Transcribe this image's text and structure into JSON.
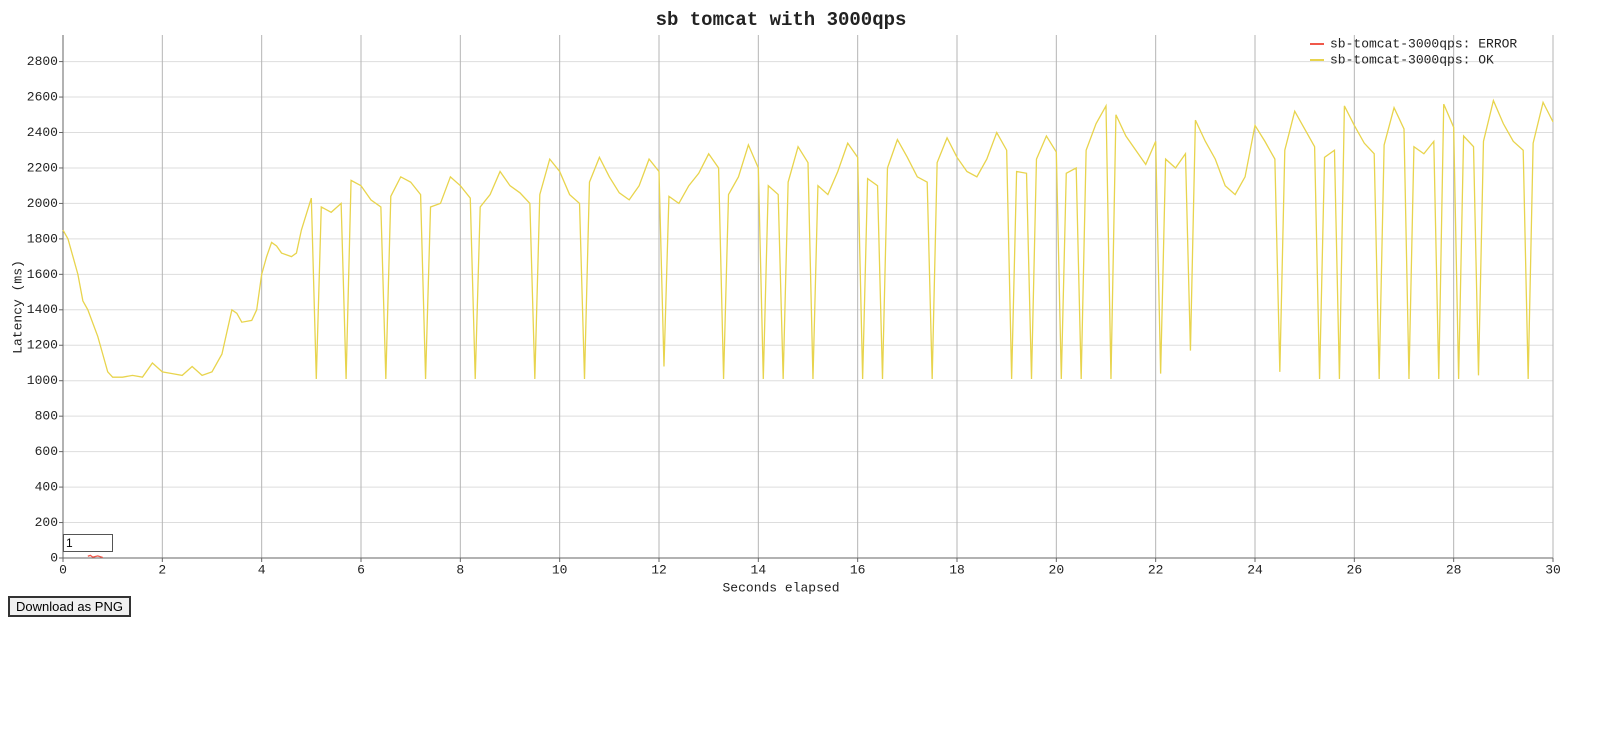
{
  "chart_data": {
    "type": "line",
    "title": "sb tomcat with 3000qps",
    "x_label": "Seconds elapsed",
    "y_label": "Latency (ms)",
    "xlim": [
      0,
      30
    ],
    "xticks": [
      0,
      2,
      4,
      6,
      8,
      10,
      12,
      14,
      16,
      18,
      20,
      22,
      24,
      26,
      28,
      30
    ],
    "ylim": [
      0,
      2950
    ],
    "yticks": [
      0,
      200,
      400,
      600,
      800,
      1000,
      1200,
      1400,
      1600,
      1800,
      2000,
      2200,
      2400,
      2600,
      2800
    ],
    "grid": true,
    "legend": "top-right",
    "series": [
      {
        "name": "sb-tomcat-3000qps: ERROR",
        "color": "#f0584a",
        "x": [
          0.5,
          0.55,
          0.6,
          0.7,
          0.8
        ],
        "values": [
          10,
          15,
          5,
          12,
          3
        ]
      },
      {
        "name": "sb-tomcat-3000qps: OK",
        "color": "#e8d44d",
        "x": [
          0,
          0.1,
          0.2,
          0.3,
          0.4,
          0.5,
          0.7,
          0.8,
          0.9,
          1,
          1.2,
          1.4,
          1.6,
          1.8,
          2,
          2.2,
          2.4,
          2.6,
          2.8,
          3,
          3.2,
          3.4,
          3.5,
          3.6,
          3.8,
          3.9,
          4,
          4.1,
          4.2,
          4.3,
          4.4,
          4.6,
          4.7,
          4.8,
          5,
          5.1,
          5.2,
          5.4,
          5.6,
          5.7,
          5.8,
          6,
          6.2,
          6.4,
          6.5,
          6.6,
          6.8,
          7,
          7.2,
          7.3,
          7.4,
          7.6,
          7.8,
          8,
          8.2,
          8.3,
          8.4,
          8.6,
          8.8,
          9,
          9.2,
          9.4,
          9.5,
          9.6,
          9.8,
          10,
          10.2,
          10.4,
          10.5,
          10.6,
          10.8,
          11,
          11.2,
          11.4,
          11.6,
          11.8,
          12,
          12.1,
          12.2,
          12.4,
          12.6,
          12.8,
          13,
          13.2,
          13.3,
          13.4,
          13.6,
          13.8,
          14,
          14.1,
          14.2,
          14.4,
          14.5,
          14.6,
          14.8,
          15,
          15.1,
          15.2,
          15.4,
          15.6,
          15.8,
          16,
          16.1,
          16.2,
          16.4,
          16.5,
          16.6,
          16.8,
          17,
          17.2,
          17.4,
          17.5,
          17.6,
          17.8,
          18,
          18.2,
          18.4,
          18.6,
          18.8,
          19,
          19.1,
          19.2,
          19.4,
          19.5,
          19.6,
          19.8,
          20,
          20.1,
          20.2,
          20.4,
          20.5,
          20.6,
          20.8,
          21,
          21.1,
          21.2,
          21.4,
          21.6,
          21.8,
          22,
          22.1,
          22.2,
          22.4,
          22.6,
          22.7,
          22.8,
          23,
          23.2,
          23.4,
          23.6,
          23.8,
          24,
          24.2,
          24.4,
          24.5,
          24.6,
          24.8,
          25,
          25.2,
          25.3,
          25.4,
          25.6,
          25.7,
          25.8,
          26,
          26.2,
          26.4,
          26.5,
          26.6,
          26.8,
          27,
          27.1,
          27.2,
          27.4,
          27.6,
          27.7,
          27.8,
          28,
          28.1,
          28.2,
          28.4,
          28.5,
          28.6,
          28.8,
          29,
          29.2,
          29.4,
          29.5,
          29.6,
          29.8,
          30
        ],
        "values": [
          1850,
          1800,
          1700,
          1600,
          1450,
          1400,
          1250,
          1150,
          1050,
          1020,
          1020,
          1030,
          1020,
          1100,
          1050,
          1040,
          1030,
          1080,
          1030,
          1050,
          1150,
          1400,
          1380,
          1330,
          1340,
          1400,
          1600,
          1700,
          1780,
          1760,
          1720,
          1700,
          1720,
          1850,
          2030,
          1010,
          1980,
          1950,
          2000,
          1010,
          2130,
          2100,
          2020,
          1980,
          1010,
          2040,
          2150,
          2120,
          2050,
          1010,
          1980,
          2000,
          2150,
          2100,
          2030,
          1010,
          1980,
          2050,
          2180,
          2100,
          2060,
          2000,
          1010,
          2050,
          2250,
          2180,
          2050,
          2000,
          1010,
          2120,
          2260,
          2150,
          2060,
          2020,
          2100,
          2250,
          2180,
          1080,
          2040,
          2000,
          2100,
          2170,
          2280,
          2200,
          1010,
          2050,
          2150,
          2330,
          2200,
          1010,
          2100,
          2050,
          1010,
          2120,
          2320,
          2230,
          1010,
          2100,
          2050,
          2180,
          2340,
          2260,
          1010,
          2140,
          2100,
          1010,
          2200,
          2360,
          2260,
          2150,
          2120,
          1010,
          2230,
          2370,
          2260,
          2180,
          2150,
          2250,
          2400,
          2300,
          1010,
          2180,
          2170,
          1010,
          2250,
          2380,
          2290,
          1010,
          2170,
          2200,
          1010,
          2300,
          2450,
          2550,
          1010,
          2500,
          2380,
          2300,
          2220,
          2350,
          1040,
          2250,
          2200,
          2280,
          1170,
          2470,
          2350,
          2250,
          2100,
          2050,
          2150,
          2440,
          2350,
          2250,
          1050,
          2300,
          2520,
          2420,
          2320,
          1010,
          2260,
          2300,
          1010,
          2550,
          2440,
          2340,
          2280,
          1010,
          2330,
          2540,
          2420,
          1010,
          2320,
          2280,
          2350,
          1010,
          2560,
          2430,
          1010,
          2380,
          2320,
          1030,
          2350,
          2580,
          2450,
          2350,
          2300,
          1010,
          2340,
          2570,
          2460
        ]
      }
    ]
  },
  "controls": {
    "roll_period": "1",
    "download_button": "Download as PNG"
  }
}
